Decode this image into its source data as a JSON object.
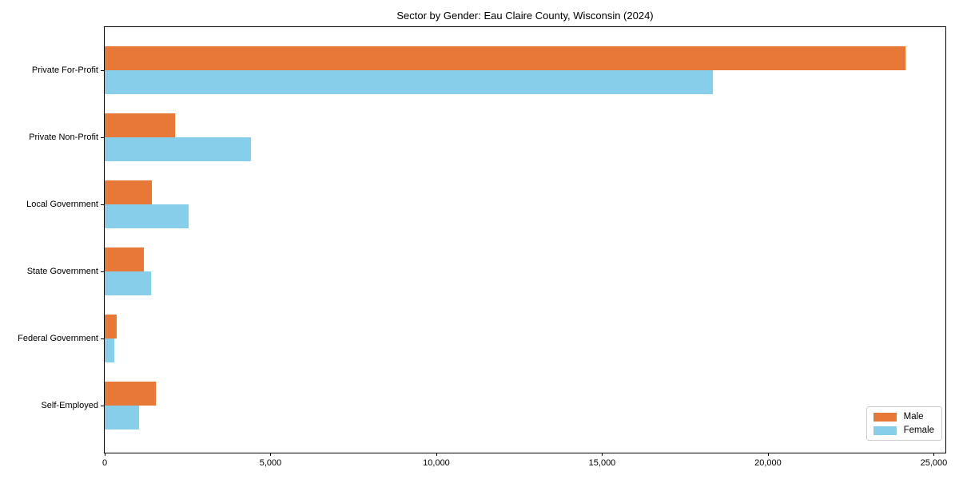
{
  "title": "Sector by Gender: Eau Claire County, Wisconsin (2024)",
  "colors": {
    "male_bar": "#E87838",
    "female_bar": "#87CEEB",
    "axis": "#000000",
    "legend_border": "#cccccc",
    "background": "#ffffff"
  },
  "chart_data": {
    "type": "bar",
    "orientation": "horizontal",
    "title": "Sector by Gender: Eau Claire County, Wisconsin (2024)",
    "xlabel": "",
    "ylabel": "",
    "grid": false,
    "legend_position": "lower right",
    "categories": [
      "Private For-Profit",
      "Private Non-Profit",
      "Local Government",
      "State Government",
      "Federal Government",
      "Self-Employed"
    ],
    "series": [
      {
        "name": "Male",
        "color": "#E87838",
        "values": [
          24140,
          2110,
          1430,
          1180,
          370,
          1530
        ]
      },
      {
        "name": "Female",
        "color": "#87CEEB",
        "values": [
          18330,
          4400,
          2520,
          1390,
          280,
          1030
        ]
      }
    ],
    "xlim": [
      0,
      25350
    ],
    "xticks": [
      0,
      5000,
      10000,
      15000,
      20000,
      25000
    ],
    "xtick_labels": [
      "0",
      "5,000",
      "10,000",
      "15,000",
      "20,000",
      "25,000"
    ]
  },
  "legend": {
    "items": [
      {
        "label": "Male"
      },
      {
        "label": "Female"
      }
    ]
  }
}
